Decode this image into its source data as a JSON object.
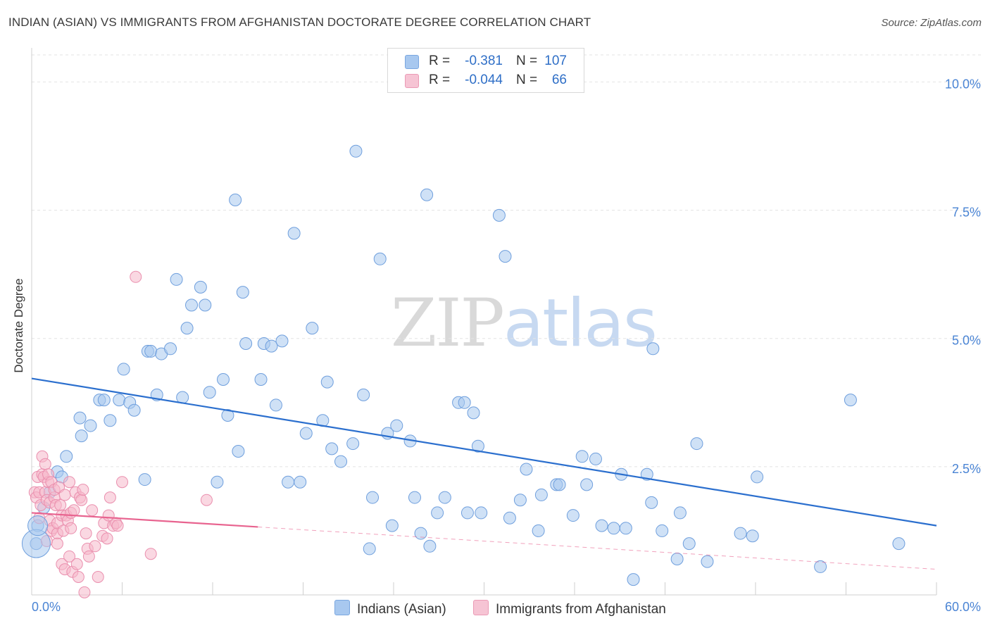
{
  "title": "INDIAN (ASIAN) VS IMMIGRANTS FROM AFGHANISTAN DOCTORATE DEGREE CORRELATION CHART",
  "source": "Source: ZipAtlas.com",
  "watermark": {
    "zip": "ZIP",
    "atlas": "atlas"
  },
  "colors": {
    "blue": "#2b6fce",
    "blue_fill": "#a8c8ef",
    "pink": "#e8638f",
    "pink_fill": "#f6b8cb",
    "tick_text": "#4a84d4"
  },
  "legend": {
    "rows": [
      {
        "r_label": "R =",
        "r_value": "-0.381",
        "n_label": "N =",
        "n_value": "107"
      },
      {
        "r_label": "R =",
        "r_value": "-0.044",
        "n_label": "N =",
        "n_value": "66"
      }
    ]
  },
  "bottom_legend": {
    "blue": "Indians (Asian)",
    "pink": "Immigrants from Afghanistan"
  },
  "chart_data": {
    "type": "scatter",
    "ylabel": "Doctorate Degree",
    "xlabel": "",
    "xlim": [
      0,
      60
    ],
    "ylim": [
      0,
      10.5
    ],
    "x_tick_labels": {
      "0": "0.0%",
      "60": "60.0%"
    },
    "y_ticks": [
      2.5,
      5.0,
      7.5,
      10.0
    ],
    "y_tick_labels": [
      "2.5%",
      "5.0%",
      "7.5%",
      "10.0%"
    ],
    "grid": true,
    "series": [
      {
        "name": "Indians (Asian)",
        "trend": {
          "x": [
            0,
            60
          ],
          "y": [
            4.22,
            1.35
          ],
          "solid_until": 60
        },
        "points": [
          [
            0.3,
            1.0
          ],
          [
            0.4,
            1.35
          ],
          [
            0.8,
            1.7
          ],
          [
            1.2,
            2.0
          ],
          [
            1.7,
            2.4
          ],
          [
            2.0,
            2.3
          ],
          [
            2.3,
            2.7
          ],
          [
            3.3,
            3.1
          ],
          [
            3.2,
            3.45
          ],
          [
            3.9,
            3.3
          ],
          [
            4.5,
            3.8
          ],
          [
            4.8,
            3.8
          ],
          [
            5.2,
            3.4
          ],
          [
            5.8,
            3.8
          ],
          [
            6.1,
            4.4
          ],
          [
            6.5,
            3.75
          ],
          [
            6.8,
            3.6
          ],
          [
            7.5,
            2.25
          ],
          [
            7.7,
            4.75
          ],
          [
            7.9,
            4.75
          ],
          [
            8.3,
            3.9
          ],
          [
            8.6,
            4.7
          ],
          [
            9.2,
            4.8
          ],
          [
            9.6,
            6.15
          ],
          [
            10.0,
            3.85
          ],
          [
            10.3,
            5.2
          ],
          [
            10.6,
            5.65
          ],
          [
            11.2,
            6.0
          ],
          [
            11.5,
            5.65
          ],
          [
            11.8,
            3.95
          ],
          [
            12.3,
            2.2
          ],
          [
            12.7,
            4.2
          ],
          [
            13.0,
            3.5
          ],
          [
            13.5,
            7.7
          ],
          [
            13.7,
            2.8
          ],
          [
            14.0,
            5.9
          ],
          [
            14.2,
            4.9
          ],
          [
            15.2,
            4.2
          ],
          [
            15.4,
            4.9
          ],
          [
            15.9,
            4.85
          ],
          [
            16.2,
            3.7
          ],
          [
            16.6,
            4.95
          ],
          [
            17.0,
            2.2
          ],
          [
            17.4,
            7.05
          ],
          [
            17.8,
            2.2
          ],
          [
            18.2,
            3.15
          ],
          [
            18.6,
            5.2
          ],
          [
            19.3,
            3.4
          ],
          [
            19.6,
            4.15
          ],
          [
            19.9,
            2.85
          ],
          [
            20.5,
            2.6
          ],
          [
            21.3,
            2.95
          ],
          [
            21.5,
            8.65
          ],
          [
            22.0,
            3.9
          ],
          [
            22.4,
            0.9
          ],
          [
            22.6,
            1.9
          ],
          [
            23.1,
            6.55
          ],
          [
            23.6,
            3.15
          ],
          [
            23.9,
            1.35
          ],
          [
            24.2,
            3.3
          ],
          [
            25.1,
            3.0
          ],
          [
            25.4,
            1.9
          ],
          [
            25.8,
            1.2
          ],
          [
            26.2,
            7.8
          ],
          [
            26.4,
            0.95
          ],
          [
            26.9,
            1.6
          ],
          [
            27.4,
            1.9
          ],
          [
            28.3,
            3.75
          ],
          [
            28.7,
            3.75
          ],
          [
            28.9,
            1.6
          ],
          [
            29.3,
            3.55
          ],
          [
            29.6,
            2.9
          ],
          [
            29.8,
            1.6
          ],
          [
            31.0,
            7.4
          ],
          [
            31.4,
            6.6
          ],
          [
            31.7,
            1.5
          ],
          [
            32.4,
            1.85
          ],
          [
            32.8,
            2.45
          ],
          [
            33.6,
            1.25
          ],
          [
            33.8,
            1.95
          ],
          [
            34.8,
            2.15
          ],
          [
            35.0,
            2.15
          ],
          [
            35.9,
            1.55
          ],
          [
            36.5,
            2.7
          ],
          [
            36.8,
            2.15
          ],
          [
            37.4,
            2.65
          ],
          [
            37.8,
            1.35
          ],
          [
            38.6,
            1.3
          ],
          [
            39.1,
            2.35
          ],
          [
            39.4,
            1.3
          ],
          [
            39.9,
            0.3
          ],
          [
            40.8,
            2.35
          ],
          [
            41.1,
            1.8
          ],
          [
            41.2,
            4.8
          ],
          [
            41.8,
            1.25
          ],
          [
            42.8,
            0.7
          ],
          [
            43.0,
            1.6
          ],
          [
            43.6,
            1.0
          ],
          [
            44.1,
            2.95
          ],
          [
            44.8,
            0.65
          ],
          [
            47.0,
            1.2
          ],
          [
            47.8,
            1.15
          ],
          [
            48.1,
            2.3
          ],
          [
            52.3,
            0.55
          ],
          [
            54.3,
            3.8
          ],
          [
            57.5,
            1.0
          ]
        ]
      },
      {
        "name": "Immigrants from Afghanistan",
        "trend": {
          "x": [
            0,
            60
          ],
          "y": [
            1.6,
            0.5
          ],
          "solid_until": 15
        },
        "points": [
          [
            0.2,
            2.0
          ],
          [
            0.3,
            1.9
          ],
          [
            0.4,
            2.3
          ],
          [
            0.5,
            2.0
          ],
          [
            0.5,
            1.5
          ],
          [
            0.6,
            1.75
          ],
          [
            0.7,
            2.35
          ],
          [
            0.7,
            2.7
          ],
          [
            0.8,
            2.3
          ],
          [
            0.9,
            2.0
          ],
          [
            0.9,
            2.55
          ],
          [
            1.0,
            1.85
          ],
          [
            1.1,
            2.2
          ],
          [
            1.1,
            2.35
          ],
          [
            1.2,
            1.45
          ],
          [
            1.2,
            1.8
          ],
          [
            1.3,
            1.25
          ],
          [
            1.3,
            2.2
          ],
          [
            1.4,
            1.3
          ],
          [
            1.5,
            1.9
          ],
          [
            1.5,
            2.05
          ],
          [
            1.6,
            1.75
          ],
          [
            1.7,
            1.2
          ],
          [
            1.7,
            1.0
          ],
          [
            1.7,
            1.4
          ],
          [
            1.8,
            2.1
          ],
          [
            1.9,
            1.75
          ],
          [
            2.0,
            1.55
          ],
          [
            2.0,
            0.6
          ],
          [
            2.1,
            1.25
          ],
          [
            2.2,
            1.95
          ],
          [
            2.2,
            0.5
          ],
          [
            2.3,
            1.55
          ],
          [
            2.4,
            1.45
          ],
          [
            2.5,
            2.2
          ],
          [
            2.5,
            0.75
          ],
          [
            2.6,
            1.3
          ],
          [
            2.6,
            1.6
          ],
          [
            2.7,
            0.45
          ],
          [
            2.8,
            1.65
          ],
          [
            2.9,
            2.0
          ],
          [
            3.0,
            0.6
          ],
          [
            3.1,
            0.35
          ],
          [
            3.2,
            1.9
          ],
          [
            3.3,
            1.85
          ],
          [
            3.4,
            2.05
          ],
          [
            3.5,
            0.05
          ],
          [
            3.6,
            1.2
          ],
          [
            3.7,
            0.9
          ],
          [
            3.8,
            0.75
          ],
          [
            4.0,
            1.65
          ],
          [
            4.2,
            0.95
          ],
          [
            4.4,
            0.35
          ],
          [
            4.7,
            1.15
          ],
          [
            4.8,
            1.4
          ],
          [
            5.0,
            1.1
          ],
          [
            5.1,
            1.55
          ],
          [
            5.2,
            1.9
          ],
          [
            5.4,
            1.35
          ],
          [
            5.6,
            1.4
          ],
          [
            5.7,
            1.35
          ],
          [
            6.0,
            2.2
          ],
          [
            6.9,
            6.2
          ],
          [
            7.9,
            0.8
          ],
          [
            11.6,
            1.85
          ],
          [
            1.0,
            1.05
          ]
        ]
      }
    ]
  }
}
